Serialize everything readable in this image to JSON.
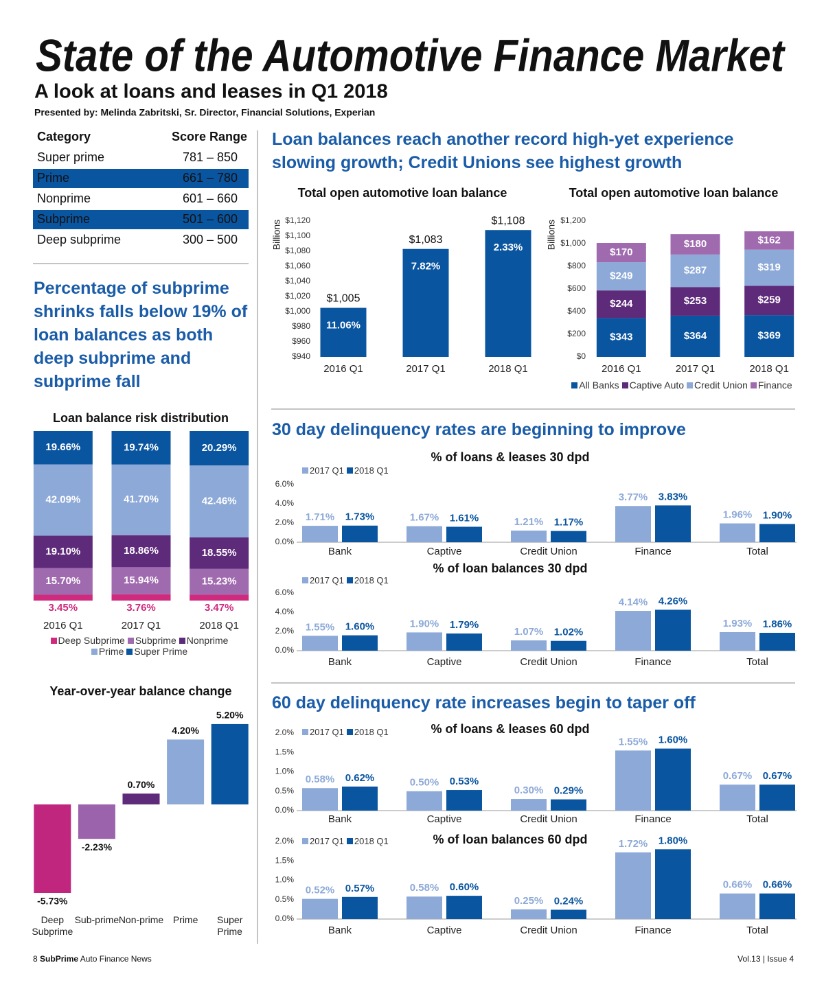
{
  "header": {
    "title": "State of the Automotive Finance Market",
    "subtitle": "A look at loans and leases in Q1 2018",
    "byline": "Presented by: Melinda Zabritski, Sr. Director, Financial Solutions, Experian"
  },
  "score_table": {
    "columns": [
      "Category",
      "Score Range"
    ],
    "rows": [
      [
        "Super prime",
        "781 – 850"
      ],
      [
        "Prime",
        "661 – 780"
      ],
      [
        "Nonprime",
        "601 – 660"
      ],
      [
        "Subprime",
        "501 – 600"
      ],
      [
        "Deep subprime",
        "300 – 500"
      ]
    ]
  },
  "headings": {
    "left": "Percentage of subprime shrinks falls below 19% of loan balances as both deep subprime and subprime fall",
    "loan": "Loan balances reach another record high-yet experience slowing growth; Credit Unions see highest growth",
    "d30": "30 day delinquency rates are beginning to improve",
    "d60": "60 day delinquency rate increases begin to taper off"
  },
  "footer": {
    "page": "8",
    "publication_bold": "SubPrime",
    "publication": "Auto Finance News",
    "issue": "Vol.13 | Issue 4"
  },
  "chart_data": [
    {
      "type": "stacked_bar",
      "title": "Loan balance risk distribution",
      "categories": [
        "2016 Q1",
        "2017 Q1",
        "2018 Q1"
      ],
      "series": [
        {
          "name": "Deep Subprime",
          "color": "#cf2a7e",
          "values": [
            3.45,
            3.76,
            3.47
          ],
          "value_labels": [
            "3.45%",
            "3.76%",
            "3.47%"
          ]
        },
        {
          "name": "Subprime",
          "color": "#a06aaf",
          "values": [
            15.7,
            15.94,
            15.23
          ],
          "value_labels": [
            "15.70%",
            "15.94%",
            "15.23%"
          ]
        },
        {
          "name": "Nonprime",
          "color": "#5e2a7a",
          "values": [
            19.1,
            18.86,
            18.55
          ],
          "value_labels": [
            "19.10%",
            "18.86%",
            "18.55%"
          ]
        },
        {
          "name": "Prime",
          "color": "#8da9d8",
          "values": [
            42.09,
            41.7,
            42.46
          ],
          "value_labels": [
            "42.09%",
            "41.70%",
            "42.46%"
          ]
        },
        {
          "name": "Super Prime",
          "color": "#0a55a0",
          "values": [
            19.66,
            19.74,
            20.29
          ],
          "value_labels": [
            "19.66%",
            "19.74%",
            "20.29%"
          ]
        }
      ]
    },
    {
      "type": "bar",
      "title": "Year-over-year balance change",
      "categories": [
        "Deep Subprime",
        "Sub-prime",
        "Non-prime",
        "Prime",
        "Super Prime"
      ],
      "values": [
        -5.73,
        -2.23,
        0.7,
        4.2,
        5.2
      ],
      "value_labels": [
        "-5.73%",
        "-2.23%",
        "0.70%",
        "4.20%",
        "5.20%"
      ],
      "colors": [
        "#c0267e",
        "#9b63ab",
        "#5e2a7a",
        "#8da9d8",
        "#0a55a0"
      ]
    },
    {
      "type": "bar",
      "title": "Total open automotive loan balance",
      "y_label": "Billions",
      "categories": [
        "2016 Q1",
        "2017 Q1",
        "2018 Q1"
      ],
      "values": [
        1005,
        1083,
        1108
      ],
      "value_labels": [
        "$1,005",
        "$1,083",
        "$1,108"
      ],
      "growth_labels": [
        "11.06%",
        "7.82%",
        "2.33%"
      ],
      "color": "#0a55a0",
      "ylim": [
        940,
        1120
      ],
      "yticks": [
        {
          "value": 940,
          "label": "$940"
        },
        {
          "value": 960,
          "label": "$960"
        },
        {
          "value": 980,
          "label": "$980"
        },
        {
          "value": 1000,
          "label": "$1,000"
        },
        {
          "value": 1020,
          "label": "$1,020"
        },
        {
          "value": 1040,
          "label": "$1,040"
        },
        {
          "value": 1060,
          "label": "$1,060"
        },
        {
          "value": 1080,
          "label": "$1,080"
        },
        {
          "value": 1100,
          "label": "$1,100"
        },
        {
          "value": 1120,
          "label": "$1,120"
        }
      ]
    },
    {
      "type": "stacked_bar",
      "title": "Total open automotive loan balance",
      "y_label": "Billions",
      "categories": [
        "2016 Q1",
        "2017 Q1",
        "2018 Q1"
      ],
      "series": [
        {
          "name": "All Banks",
          "color": "#0a55a0",
          "values": [
            343,
            364,
            369
          ],
          "value_labels": [
            "$343",
            "$364",
            "$369"
          ]
        },
        {
          "name": "Captive Auto",
          "color": "#5e2a7a",
          "values": [
            244,
            253,
            259
          ],
          "value_labels": [
            "$244",
            "$253",
            "$259"
          ]
        },
        {
          "name": "Credit Union",
          "color": "#8da9d8",
          "values": [
            249,
            287,
            319
          ],
          "value_labels": [
            "$249",
            "$287",
            "$319"
          ]
        },
        {
          "name": "Finance",
          "color": "#a06aaf",
          "values": [
            170,
            180,
            162
          ],
          "value_labels": [
            "$170",
            "$180",
            "$162"
          ]
        }
      ],
      "ylim": [
        0,
        1200
      ],
      "yticks": [
        {
          "value": 0,
          "label": "$0"
        },
        {
          "value": 200,
          "label": "$200"
        },
        {
          "value": 400,
          "label": "$400"
        },
        {
          "value": 600,
          "label": "$600"
        },
        {
          "value": 800,
          "label": "$800"
        },
        {
          "value": 1000,
          "label": "$1,000"
        },
        {
          "value": 1200,
          "label": "$1,200"
        }
      ]
    },
    {
      "type": "grouped_bar",
      "title": "% of loans & leases 30 dpd",
      "categories": [
        "Bank",
        "Captive",
        "Credit Union",
        "Finance",
        "Total"
      ],
      "series": [
        {
          "name": "2017 Q1",
          "color": "#8da9d8",
          "values": [
            1.71,
            1.67,
            1.21,
            3.77,
            1.96
          ],
          "value_labels": [
            "1.71%",
            "1.67%",
            "1.21%",
            "3.77%",
            "1.96%"
          ]
        },
        {
          "name": "2018 Q1",
          "color": "#0a55a0",
          "values": [
            1.73,
            1.61,
            1.17,
            3.83,
            1.9
          ],
          "value_labels": [
            "1.73%",
            "1.61%",
            "1.17%",
            "3.83%",
            "1.90%"
          ]
        }
      ],
      "ylim": [
        0,
        6
      ],
      "yticks": [
        {
          "value": 0,
          "label": "0.0%"
        },
        {
          "value": 2,
          "label": "2.0%"
        },
        {
          "value": 4,
          "label": "4.0%"
        },
        {
          "value": 6,
          "label": "6.0%"
        }
      ]
    },
    {
      "type": "grouped_bar",
      "title": "% of loan balances 30 dpd",
      "categories": [
        "Bank",
        "Captive",
        "Credit Union",
        "Finance",
        "Total"
      ],
      "series": [
        {
          "name": "2017 Q1",
          "color": "#8da9d8",
          "values": [
            1.55,
            1.9,
            1.07,
            4.14,
            1.93
          ],
          "value_labels": [
            "1.55%",
            "1.90%",
            "1.07%",
            "4.14%",
            "1.93%"
          ]
        },
        {
          "name": "2018 Q1",
          "color": "#0a55a0",
          "values": [
            1.6,
            1.79,
            1.02,
            4.26,
            1.86
          ],
          "value_labels": [
            "1.60%",
            "1.79%",
            "1.02%",
            "4.26%",
            "1.86%"
          ]
        }
      ],
      "ylim": [
        0,
        6
      ],
      "yticks": [
        {
          "value": 0,
          "label": "0.0%"
        },
        {
          "value": 2,
          "label": "2.0%"
        },
        {
          "value": 4,
          "label": "4.0%"
        },
        {
          "value": 6,
          "label": "6.0%"
        }
      ]
    },
    {
      "type": "grouped_bar",
      "title": "% of loans & leases 60 dpd",
      "categories": [
        "Bank",
        "Captive",
        "Credit Union",
        "Finance",
        "Total"
      ],
      "series": [
        {
          "name": "2017 Q1",
          "color": "#8da9d8",
          "values": [
            0.58,
            0.5,
            0.3,
            1.55,
            0.67
          ],
          "value_labels": [
            "0.58%",
            "0.50%",
            "0.30%",
            "1.55%",
            "0.67%"
          ]
        },
        {
          "name": "2018 Q1",
          "color": "#0a55a0",
          "values": [
            0.62,
            0.53,
            0.29,
            1.6,
            0.67
          ],
          "value_labels": [
            "0.62%",
            "0.53%",
            "0.29%",
            "1.60%",
            "0.67%"
          ]
        }
      ],
      "ylim": [
        0,
        2
      ],
      "yticks": [
        {
          "value": 0,
          "label": "0.0%"
        },
        {
          "value": 0.5,
          "label": "0.5%"
        },
        {
          "value": 1,
          "label": "1.0%"
        },
        {
          "value": 1.5,
          "label": "1.5%"
        },
        {
          "value": 2,
          "label": "2.0%"
        }
      ]
    },
    {
      "type": "grouped_bar",
      "title": "% of loan balances 60 dpd",
      "categories": [
        "Bank",
        "Captive",
        "Credit Union",
        "Finance",
        "Total"
      ],
      "series": [
        {
          "name": "2017 Q1",
          "color": "#8da9d8",
          "values": [
            0.52,
            0.58,
            0.25,
            1.72,
            0.66
          ],
          "value_labels": [
            "0.52%",
            "0.58%",
            "0.25%",
            "1.72%",
            "0.66%"
          ]
        },
        {
          "name": "2018 Q1",
          "color": "#0a55a0",
          "values": [
            0.57,
            0.6,
            0.24,
            1.8,
            0.66
          ],
          "value_labels": [
            "0.57%",
            "0.60%",
            "0.24%",
            "1.80%",
            "0.66%"
          ]
        }
      ],
      "ylim": [
        0,
        2
      ],
      "yticks": [
        {
          "value": 0,
          "label": "0.0%"
        },
        {
          "value": 0.5,
          "label": "0.5%"
        },
        {
          "value": 1,
          "label": "1.0%"
        },
        {
          "value": 1.5,
          "label": "1.5%"
        },
        {
          "value": 2,
          "label": "2.0%"
        }
      ]
    }
  ]
}
